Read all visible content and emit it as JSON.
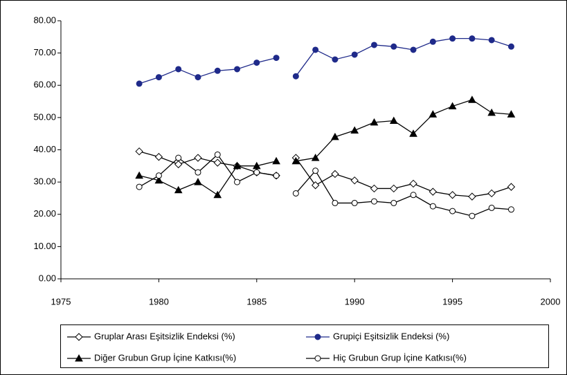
{
  "chart_data": {
    "type": "line",
    "x": [
      1979,
      1980,
      1981,
      1982,
      1983,
      1984,
      1985,
      1986,
      null,
      1987,
      1988,
      1989,
      1990,
      1991,
      1992,
      1993,
      1994,
      1995,
      1996,
      1997,
      1998
    ],
    "series": [
      {
        "name": "Gruplar Arası Eşitsizlik Endeksi (%)",
        "color": "#000000",
        "marker": "diamond-open",
        "values": [
          39.5,
          37.8,
          35.5,
          37.5,
          36,
          35,
          33,
          32,
          null,
          37.5,
          29,
          32.5,
          30.5,
          28,
          28,
          29.5,
          27,
          26,
          25.5,
          26.5,
          28.5
        ]
      },
      {
        "name": "Grupiçi Eşitsizlik Endeksi (%)",
        "color": "#1f2a8a",
        "marker": "circle-filled",
        "values": [
          60.5,
          62.5,
          65,
          62.5,
          64.5,
          65,
          67,
          68.5,
          null,
          62.8,
          71,
          68,
          69.5,
          72.5,
          72,
          71,
          73.5,
          74.5,
          74.5,
          74,
          72
        ]
      },
      {
        "name": "Diğer Grubun Grup İçine Katkısı(%)",
        "color": "#000000",
        "marker": "triangle-filled",
        "values": [
          32,
          30.5,
          27.5,
          30,
          26,
          35,
          35,
          36.5,
          null,
          36.5,
          37.5,
          44,
          46,
          48.5,
          49,
          45,
          51,
          53.5,
          55.5,
          51.5,
          51
        ]
      },
      {
        "name": "Hiç Grubun Grup İçine Katkısı(%)",
        "color": "#000000",
        "marker": "circle-open",
        "values": [
          28.5,
          32,
          37.5,
          33,
          38.5,
          30,
          33,
          32,
          null,
          26.5,
          33.5,
          23.5,
          23.5,
          24,
          23.5,
          26,
          22.5,
          21,
          19.5,
          22,
          21.5
        ]
      }
    ],
    "xlim": [
      1975,
      2000
    ],
    "xticks": [
      1975,
      1980,
      1985,
      1990,
      1995,
      2000
    ],
    "ylim": [
      0,
      80
    ],
    "yticks": [
      {
        "value": 0,
        "label": "0.00"
      },
      {
        "value": 10,
        "label": "10.00"
      },
      {
        "value": 20,
        "label": "20.00"
      },
      {
        "value": 30,
        "label": "30.00"
      },
      {
        "value": 40,
        "label": "40.00"
      },
      {
        "value": 50,
        "label": "50.00"
      },
      {
        "value": 60,
        "label": "60.00"
      },
      {
        "value": 70,
        "label": "70.00"
      },
      {
        "value": 80,
        "label": "80.00"
      }
    ],
    "legend": "bottom"
  }
}
